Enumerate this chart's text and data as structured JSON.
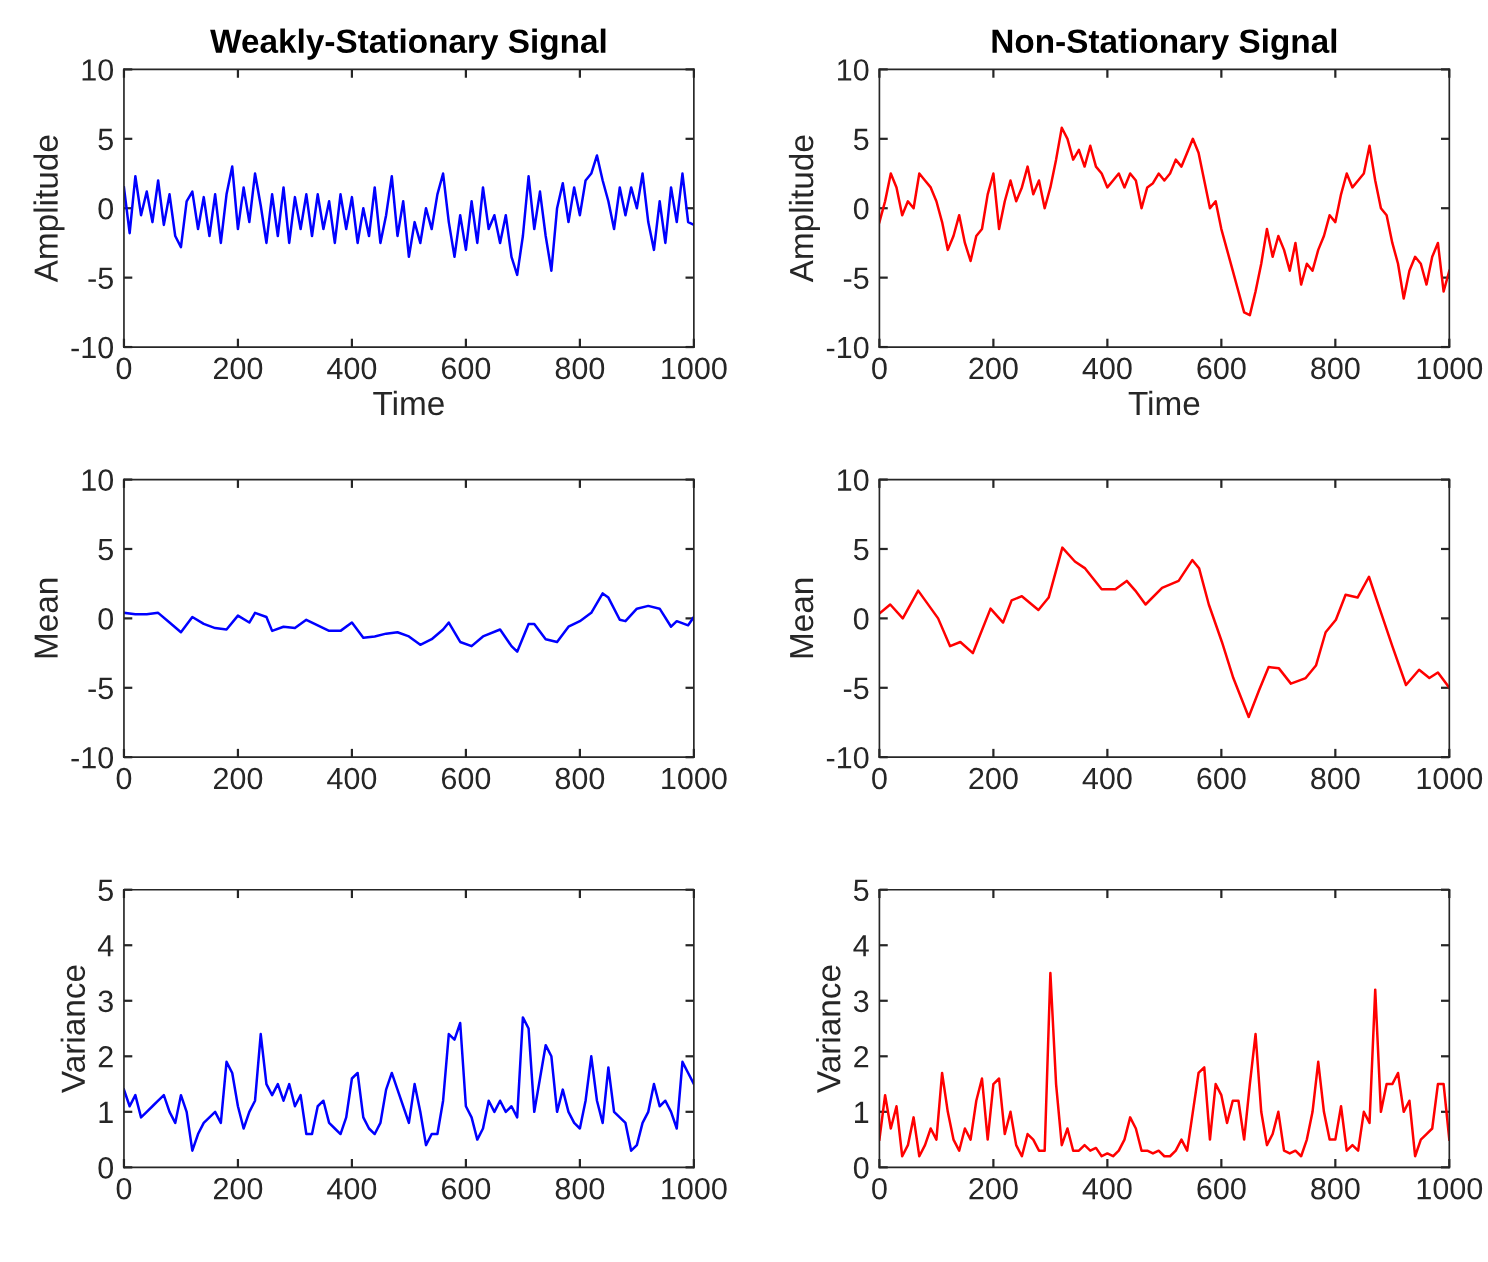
{
  "chart_data": [
    {
      "type": "line",
      "title": "Weakly-Stationary Signal",
      "xlabel": "Time",
      "ylabel": "Amplitude",
      "xlim": [
        0,
        1000
      ],
      "ylim": [
        -10,
        10
      ],
      "xticks": [
        0,
        200,
        400,
        600,
        800,
        1000
      ],
      "yticks": [
        -10,
        -5,
        0,
        5,
        10
      ],
      "series": [
        {
          "color": "#0000ff",
          "x": [
            0,
            10,
            20,
            30,
            40,
            50,
            60,
            70,
            80,
            90,
            100,
            110,
            120,
            130,
            140,
            150,
            160,
            170,
            180,
            190,
            200,
            210,
            220,
            230,
            240,
            250,
            260,
            270,
            280,
            290,
            300,
            310,
            320,
            330,
            340,
            350,
            360,
            370,
            380,
            390,
            400,
            410,
            420,
            430,
            440,
            450,
            460,
            470,
            480,
            490,
            500,
            510,
            520,
            530,
            540,
            550,
            560,
            570,
            580,
            590,
            600,
            610,
            620,
            630,
            640,
            650,
            660,
            670,
            680,
            690,
            700,
            710,
            720,
            730,
            740,
            750,
            760,
            770,
            780,
            790,
            800,
            810,
            820,
            830,
            840,
            850,
            860,
            870,
            880,
            890,
            900,
            910,
            920,
            930,
            940,
            950,
            960,
            970,
            980,
            990,
            1000
          ],
          "values": [
            1.5,
            -1.8,
            2.3,
            -0.5,
            1.2,
            -1.0,
            2.0,
            -1.2,
            1.0,
            -2.0,
            -2.8,
            0.5,
            1.2,
            -1.5,
            0.8,
            -2.0,
            1.0,
            -2.5,
            1.0,
            3.0,
            -1.5,
            1.5,
            -1.0,
            2.5,
            0.2,
            -2.5,
            1.0,
            -2.0,
            1.5,
            -2.5,
            0.8,
            -1.5,
            1.0,
            -2.0,
            1.0,
            -1.5,
            0.5,
            -2.5,
            1.0,
            -1.5,
            0.8,
            -2.5,
            0.0,
            -2.0,
            1.5,
            -2.5,
            -0.5,
            2.3,
            -2.0,
            0.5,
            -3.5,
            -1.0,
            -2.5,
            0.0,
            -1.5,
            1.0,
            2.5,
            -1.0,
            -3.5,
            -0.5,
            -3.0,
            0.5,
            -2.5,
            1.5,
            -1.5,
            -0.5,
            -2.5,
            -0.5,
            -3.5,
            -4.8,
            -2.0,
            2.3,
            -1.5,
            1.2,
            -2.0,
            -4.5,
            0.0,
            1.8,
            -1.0,
            1.5,
            -0.5,
            2.0,
            2.5,
            3.8,
            2.0,
            0.5,
            -1.5,
            1.5,
            -0.5,
            1.5,
            0.0,
            2.5,
            -1.0,
            -3.0,
            0.5,
            -2.5,
            1.5,
            -1.0,
            2.5,
            -1.0,
            -1.2
          ]
        }
      ]
    },
    {
      "type": "line",
      "title": "Non-Stationary Signal",
      "xlabel": "Time",
      "ylabel": "Amplitude",
      "xlim": [
        0,
        1000
      ],
      "ylim": [
        -10,
        10
      ],
      "xticks": [
        0,
        200,
        400,
        600,
        800,
        1000
      ],
      "yticks": [
        -10,
        -5,
        0,
        5,
        10
      ],
      "series": [
        {
          "color": "#ff0000",
          "x": [
            0,
            10,
            20,
            30,
            40,
            50,
            60,
            70,
            80,
            90,
            100,
            110,
            120,
            130,
            140,
            150,
            160,
            170,
            180,
            190,
            200,
            210,
            220,
            230,
            240,
            250,
            260,
            270,
            280,
            290,
            300,
            310,
            320,
            330,
            340,
            350,
            360,
            370,
            380,
            390,
            400,
            410,
            420,
            430,
            440,
            450,
            460,
            470,
            480,
            490,
            500,
            510,
            520,
            530,
            540,
            550,
            560,
            570,
            580,
            590,
            600,
            610,
            620,
            630,
            640,
            650,
            660,
            670,
            680,
            690,
            700,
            710,
            720,
            730,
            740,
            750,
            760,
            770,
            780,
            790,
            800,
            810,
            820,
            830,
            840,
            850,
            860,
            870,
            880,
            890,
            900,
            910,
            920,
            930,
            940,
            950,
            960,
            970,
            980,
            990,
            1000
          ],
          "values": [
            -1,
            0.5,
            2.5,
            1.5,
            -0.5,
            0.5,
            0,
            2.5,
            2.0,
            1.5,
            0.5,
            -1.0,
            -3.0,
            -2.0,
            -0.5,
            -2.5,
            -3.8,
            -2.0,
            -1.5,
            1.0,
            2.5,
            -1.5,
            0.5,
            2.0,
            0.5,
            1.5,
            3.0,
            1.0,
            2.0,
            0.0,
            1.5,
            3.5,
            5.8,
            5.0,
            3.5,
            4.2,
            3.0,
            4.5,
            3.0,
            2.5,
            1.5,
            2.0,
            2.5,
            1.5,
            2.5,
            2.0,
            0.0,
            1.5,
            1.8,
            2.5,
            2.0,
            2.5,
            3.5,
            3.0,
            4.0,
            5.0,
            4.0,
            2.0,
            0.0,
            0.5,
            -1.5,
            -3.0,
            -4.5,
            -6.0,
            -7.5,
            -7.7,
            -6.0,
            -4.0,
            -1.5,
            -3.5,
            -2.0,
            -3.0,
            -4.5,
            -2.5,
            -5.5,
            -4.0,
            -4.5,
            -3.0,
            -2.0,
            -0.5,
            -1.0,
            1.0,
            2.5,
            1.5,
            2.0,
            2.5,
            4.5,
            2.0,
            0.0,
            -0.5,
            -2.5,
            -4.0,
            -6.5,
            -4.5,
            -3.5,
            -4.0,
            -5.5,
            -3.5,
            -2.5,
            -6.0,
            -4.5
          ]
        }
      ]
    },
    {
      "type": "line",
      "ylabel": "Mean",
      "xlim": [
        0,
        1000
      ],
      "ylim": [
        -10,
        10
      ],
      "xticks": [
        0,
        200,
        400,
        600,
        800,
        1000
      ],
      "yticks": [
        -10,
        -5,
        0,
        5,
        10
      ],
      "series": [
        {
          "color": "#0000ff",
          "x": [
            0,
            20,
            40,
            60,
            80,
            100,
            120,
            140,
            160,
            180,
            200,
            220,
            230,
            250,
            260,
            280,
            300,
            320,
            340,
            360,
            380,
            400,
            420,
            440,
            460,
            480,
            500,
            520,
            540,
            560,
            570,
            590,
            610,
            630,
            660,
            680,
            690,
            710,
            720,
            740,
            760,
            780,
            800,
            820,
            840,
            850,
            870,
            880,
            900,
            920,
            940,
            960,
            970,
            990,
            1000
          ],
          "values": [
            0.4,
            0.3,
            0.3,
            0.4,
            -0.3,
            -1.0,
            0.1,
            -0.4,
            -0.7,
            -0.8,
            0.2,
            -0.3,
            0.4,
            0.1,
            -0.9,
            -0.6,
            -0.7,
            -0.1,
            -0.5,
            -0.9,
            -0.9,
            -0.3,
            -1.4,
            -1.3,
            -1.1,
            -1.0,
            -1.3,
            -1.9,
            -1.5,
            -0.8,
            -0.3,
            -1.7,
            -2.0,
            -1.3,
            -0.8,
            -2.0,
            -2.4,
            -0.4,
            -0.4,
            -1.5,
            -1.7,
            -0.6,
            -0.2,
            0.4,
            1.8,
            1.5,
            -0.1,
            -0.2,
            0.7,
            0.9,
            0.7,
            -0.6,
            -0.2,
            -0.5,
            0.1
          ]
        }
      ]
    },
    {
      "type": "line",
      "ylabel": "Mean",
      "xlim": [
        0,
        1000
      ],
      "ylim": [
        -10,
        10
      ],
      "xticks": [
        0,
        200,
        400,
        600,
        800,
        1000
      ],
      "yticks": [
        -10,
        -5,
        0,
        5,
        10
      ],
      "series": [
        {
          "color": "#ff0000",
          "x": [
            0,
            19,
            41,
            68,
            103,
            124,
            142,
            164,
            195,
            217,
            232,
            250,
            279,
            297,
            321,
            343,
            361,
            390,
            414,
            434,
            449,
            467,
            496,
            525,
            549,
            561,
            578,
            601,
            621,
            648,
            666,
            683,
            701,
            722,
            748,
            766,
            783,
            801,
            818,
            839,
            859,
            877,
            900,
            924,
            947,
            965,
            980,
            1000
          ],
          "values": [
            0.35,
            1.0,
            0,
            2.0,
            0,
            -2.0,
            -1.7,
            -2.5,
            0.7,
            -0.3,
            1.3,
            1.6,
            0.6,
            1.5,
            5.1,
            4.1,
            3.6,
            2.1,
            2.1,
            2.7,
            2.0,
            1.0,
            2.2,
            2.7,
            4.2,
            3.6,
            1.0,
            -1.7,
            -4.3,
            -7.1,
            -5.2,
            -3.5,
            -3.6,
            -4.7,
            -4.3,
            -3.4,
            -1.0,
            -0.1,
            1.7,
            1.5,
            3.0,
            0.8,
            -2.0,
            -4.8,
            -3.7,
            -4.3,
            -3.9,
            -5.0
          ]
        }
      ]
    },
    {
      "type": "line",
      "ylabel": "Variance",
      "xlim": [
        0,
        1000
      ],
      "ylim": [
        0,
        5
      ],
      "xticks": [
        0,
        200,
        400,
        600,
        800,
        1000
      ],
      "yticks": [
        0,
        1,
        2,
        3,
        4,
        5
      ],
      "series": [
        {
          "color": "#0000ff",
          "x": [
            0,
            10,
            20,
            30,
            40,
            50,
            60,
            70,
            80,
            90,
            100,
            110,
            120,
            130,
            140,
            150,
            160,
            170,
            180,
            190,
            200,
            210,
            220,
            230,
            240,
            250,
            260,
            270,
            280,
            290,
            300,
            310,
            320,
            330,
            340,
            350,
            360,
            370,
            380,
            390,
            400,
            410,
            420,
            430,
            440,
            450,
            460,
            470,
            480,
            490,
            500,
            510,
            520,
            530,
            540,
            550,
            560,
            570,
            580,
            590,
            600,
            610,
            620,
            630,
            640,
            650,
            660,
            670,
            680,
            690,
            700,
            710,
            720,
            730,
            740,
            750,
            760,
            770,
            780,
            790,
            800,
            810,
            820,
            830,
            840,
            850,
            860,
            870,
            880,
            890,
            900,
            910,
            920,
            930,
            940,
            950,
            960,
            970,
            980,
            990,
            1000
          ],
          "values": [
            1.4,
            1.1,
            1.3,
            0.9,
            1.0,
            1.1,
            1.2,
            1.3,
            1.0,
            0.8,
            1.3,
            1.0,
            0.3,
            0.6,
            0.8,
            0.9,
            1.0,
            0.8,
            1.9,
            1.7,
            1.1,
            0.7,
            1.0,
            1.2,
            2.4,
            1.5,
            1.3,
            1.5,
            1.2,
            1.5,
            1.1,
            1.3,
            0.6,
            0.6,
            1.1,
            1.2,
            0.8,
            0.7,
            0.6,
            0.9,
            1.6,
            1.7,
            0.9,
            0.7,
            0.6,
            0.8,
            1.4,
            1.7,
            1.4,
            1.1,
            0.8,
            1.5,
            1.0,
            0.4,
            0.6,
            0.6,
            1.2,
            2.4,
            2.3,
            2.6,
            1.1,
            0.9,
            0.5,
            0.7,
            1.2,
            1.0,
            1.2,
            1.0,
            1.1,
            0.9,
            2.7,
            2.5,
            1.0,
            1.6,
            2.2,
            2.0,
            1.0,
            1.4,
            1.0,
            0.8,
            0.7,
            1.2,
            2.0,
            1.2,
            0.8,
            1.8,
            1.0,
            0.9,
            0.8,
            0.3,
            0.4,
            0.8,
            1.0,
            1.5,
            1.1,
            1.2,
            1.0,
            0.7,
            1.9,
            1.7,
            1.5
          ]
        }
      ]
    },
    {
      "type": "line",
      "ylabel": "Variance",
      "xlim": [
        0,
        1000
      ],
      "ylim": [
        0,
        5
      ],
      "xticks": [
        0,
        200,
        400,
        600,
        800,
        1000
      ],
      "yticks": [
        0,
        1,
        2,
        3,
        4,
        5
      ],
      "series": [
        {
          "color": "#ff0000",
          "x": [
            0,
            10,
            20,
            30,
            40,
            50,
            60,
            70,
            80,
            90,
            100,
            110,
            120,
            130,
            140,
            150,
            160,
            170,
            180,
            190,
            200,
            210,
            220,
            230,
            240,
            250,
            260,
            270,
            280,
            290,
            300,
            310,
            320,
            330,
            340,
            350,
            360,
            370,
            380,
            390,
            400,
            410,
            420,
            430,
            440,
            450,
            460,
            470,
            480,
            490,
            500,
            510,
            520,
            530,
            540,
            550,
            560,
            570,
            580,
            590,
            600,
            610,
            620,
            630,
            640,
            650,
            660,
            670,
            680,
            690,
            700,
            710,
            720,
            730,
            740,
            750,
            760,
            770,
            780,
            790,
            800,
            810,
            820,
            830,
            840,
            850,
            860,
            870,
            880,
            890,
            900,
            910,
            920,
            930,
            940,
            950,
            960,
            970,
            980,
            990,
            1000
          ],
          "values": [
            0.5,
            1.3,
            0.7,
            1.1,
            0.2,
            0.4,
            0.9,
            0.2,
            0.4,
            0.7,
            0.5,
            1.7,
            1.0,
            0.5,
            0.3,
            0.7,
            0.5,
            1.2,
            1.6,
            0.5,
            1.5,
            1.6,
            0.6,
            1.0,
            0.4,
            0.2,
            0.6,
            0.5,
            0.3,
            0.3,
            3.5,
            1.5,
            0.4,
            0.7,
            0.3,
            0.3,
            0.4,
            0.3,
            0.35,
            0.2,
            0.25,
            0.2,
            0.3,
            0.5,
            0.9,
            0.7,
            0.3,
            0.3,
            0.25,
            0.3,
            0.2,
            0.2,
            0.3,
            0.5,
            0.3,
            1.0,
            1.7,
            1.8,
            0.5,
            1.5,
            1.3,
            0.8,
            1.2,
            1.2,
            0.5,
            1.5,
            2.4,
            1.0,
            0.4,
            0.6,
            1.0,
            0.3,
            0.25,
            0.3,
            0.2,
            0.5,
            1.0,
            1.9,
            1.0,
            0.5,
            0.5,
            1.1,
            0.3,
            0.4,
            0.3,
            1.0,
            0.8,
            3.2,
            1.0,
            1.5,
            1.5,
            1.7,
            1.0,
            1.2,
            0.2,
            0.5,
            0.6,
            0.7,
            1.5,
            1.5,
            0.5
          ]
        }
      ]
    }
  ]
}
